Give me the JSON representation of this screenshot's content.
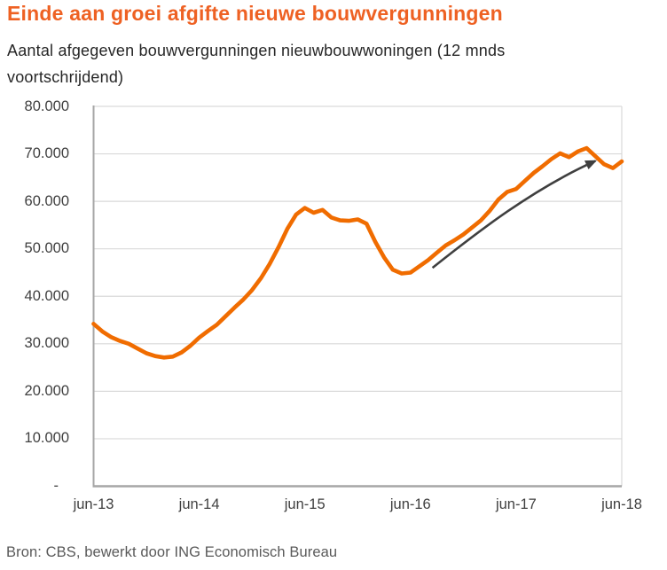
{
  "header": {
    "title": "Einde aan groei afgifte nieuwe bouwvergunningen",
    "subtitle_line1": "Aantal afgegeven bouwvergunningen nieuwbouwwoningen (12 mnds",
    "subtitle_line2": "voortschrijdend)"
  },
  "source": "Bron: CBS, bewerkt door ING Economisch Bureau",
  "colors": {
    "title": "#EE6123",
    "subtitle_text": "#262626",
    "line": "#F06C00",
    "arrow": "#3F3F3F",
    "grid": "#D9D9D9",
    "axis": "#A6A6A6",
    "tick_text": "#404040",
    "source_text": "#595959"
  },
  "chart_data": {
    "type": "line",
    "title": "Einde aan groei afgifte nieuwe bouwvergunningen",
    "subtitle": "Aantal afgegeven bouwvergunningen nieuwbouwwoningen (12 mnds voortschrijdend)",
    "x_unit": "month",
    "x_range": [
      "jun-13",
      "jun-18"
    ],
    "x_tick_labels": [
      "jun-13",
      "jun-14",
      "jun-15",
      "jun-16",
      "jun-17",
      "jun-18"
    ],
    "x_tick_month_index": [
      0,
      12,
      24,
      36,
      48,
      60
    ],
    "y_tick_labels": [
      "80.000",
      "70.000",
      "60.000",
      "50.000",
      "40.000",
      "30.000",
      "20.000",
      "10.000",
      "-"
    ],
    "y_tick_values": [
      80000,
      70000,
      60000,
      50000,
      40000,
      30000,
      20000,
      10000,
      0
    ],
    "ylim": [
      0,
      80000
    ],
    "grid": "horizontal",
    "legend": "none",
    "series": [
      {
        "name": "Afgegeven bouwvergunningen nieuwbouwwoningen (12 mnds voortschrijdend)",
        "start_month": "jun-13",
        "monthly_values": [
          34200,
          32600,
          31400,
          30600,
          30000,
          29000,
          28000,
          27400,
          27100,
          27300,
          28200,
          29600,
          31300,
          32700,
          34000,
          35800,
          37600,
          39300,
          41300,
          43800,
          46800,
          50300,
          54200,
          57200,
          58600,
          57600,
          58200,
          56600,
          56000,
          55900,
          56200,
          55300,
          51500,
          48200,
          45600,
          44800,
          45000,
          46300,
          47600,
          49200,
          50700,
          51800,
          53000,
          54500,
          56000,
          58000,
          60400,
          62000,
          62600,
          64300,
          66000,
          67400,
          68900,
          70100,
          69300,
          70500,
          71200,
          69500,
          67800,
          67000,
          68400
        ]
      }
    ],
    "annotation_arrow": {
      "description": "curved upward trend arrow",
      "from_month_index": 38.5,
      "from_value": 46000,
      "to_month_index": 57,
      "to_value": 68500
    }
  }
}
